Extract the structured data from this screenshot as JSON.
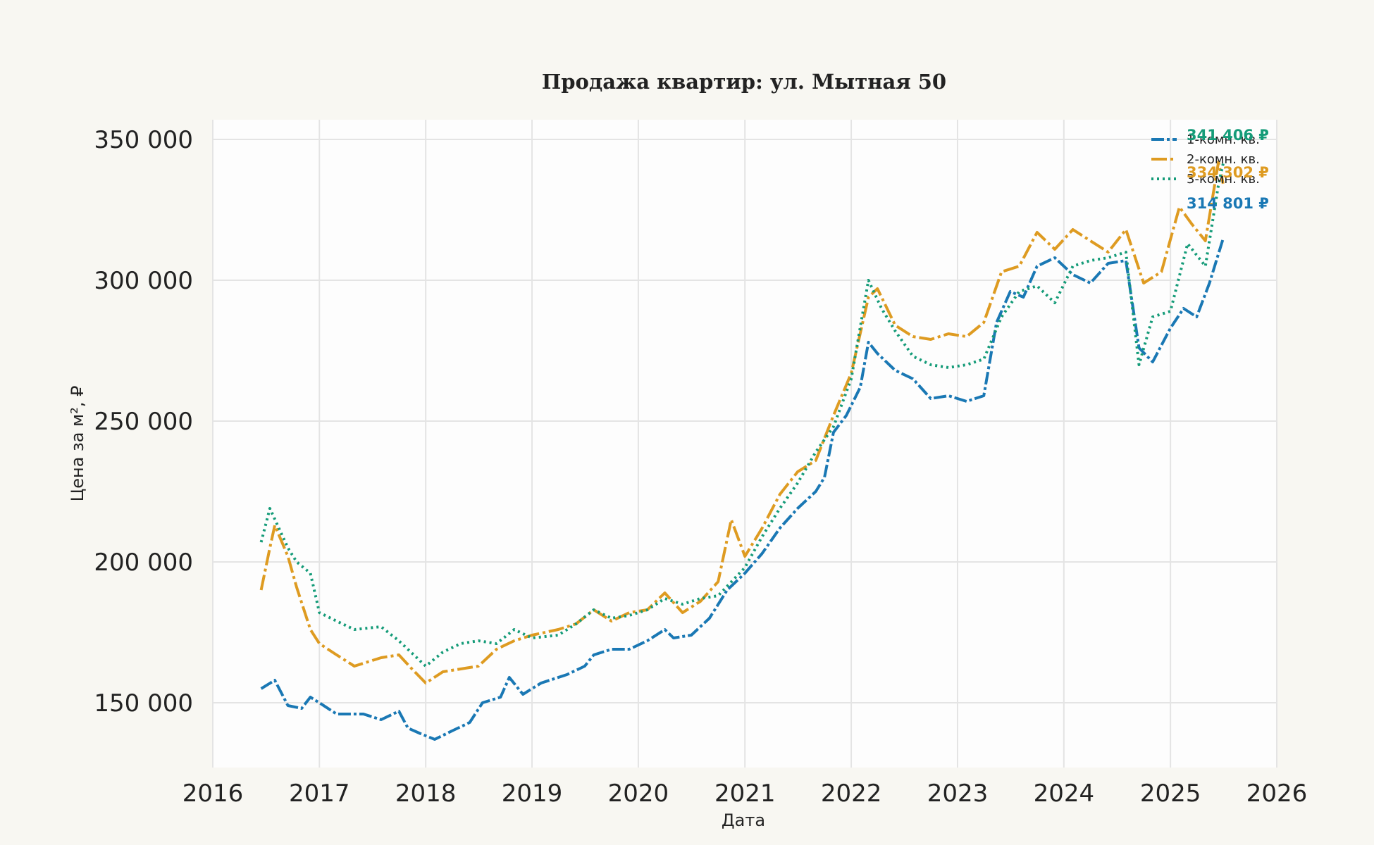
{
  "chart_data": {
    "type": "line",
    "title": "Продажа квартир: ул. Мытная 50",
    "xlabel": "Дата",
    "ylabel": "Цена за м², ₽",
    "x_ticks": [
      "2016",
      "2017",
      "2018",
      "2019",
      "2020",
      "2021",
      "2022",
      "2023",
      "2024",
      "2025",
      "2026"
    ],
    "y_ticks": [
      "150 000",
      "200 000",
      "250 000",
      "300 000",
      "350 000"
    ],
    "x_range": [
      "2016-01-01",
      "2026-01-01"
    ],
    "ylim": [
      127000,
      357000
    ],
    "grid": true,
    "legend_position": "top-right",
    "colors": {
      "background": "#f8f7f2",
      "plot": "#fdfdfd",
      "grid": "#e4e4e4"
    },
    "series": [
      {
        "name": "1-комн. кв.",
        "color": "#1a78b4",
        "dash": "18 4 4 4",
        "end_label": "314 801 ₽",
        "points": [
          [
            "2016-06-15",
            155000
          ],
          [
            "2016-08-01",
            158000
          ],
          [
            "2016-09-15",
            149000
          ],
          [
            "2016-11-01",
            148000
          ],
          [
            "2016-12-01",
            152000
          ],
          [
            "2017-01-01",
            150000
          ],
          [
            "2017-03-01",
            146000
          ],
          [
            "2017-06-01",
            146000
          ],
          [
            "2017-08-01",
            144000
          ],
          [
            "2017-10-01",
            147000
          ],
          [
            "2017-11-01",
            141000
          ],
          [
            "2017-12-15",
            139000
          ],
          [
            "2018-02-01",
            137000
          ],
          [
            "2018-04-01",
            140000
          ],
          [
            "2018-06-01",
            143000
          ],
          [
            "2018-07-15",
            150000
          ],
          [
            "2018-09-15",
            152000
          ],
          [
            "2018-10-15",
            159000
          ],
          [
            "2018-12-01",
            153000
          ],
          [
            "2019-02-01",
            157000
          ],
          [
            "2019-05-01",
            160000
          ],
          [
            "2019-07-01",
            163000
          ],
          [
            "2019-08-01",
            167000
          ],
          [
            "2019-10-01",
            169000
          ],
          [
            "2019-12-01",
            169000
          ],
          [
            "2020-02-01",
            172000
          ],
          [
            "2020-04-01",
            176000
          ],
          [
            "2020-05-01",
            173000
          ],
          [
            "2020-07-01",
            174000
          ],
          [
            "2020-09-01",
            180000
          ],
          [
            "2020-11-01",
            190000
          ],
          [
            "2021-01-01",
            196000
          ],
          [
            "2021-03-01",
            203000
          ],
          [
            "2021-05-01",
            212000
          ],
          [
            "2021-07-01",
            219000
          ],
          [
            "2021-09-01",
            225000
          ],
          [
            "2021-10-01",
            230000
          ],
          [
            "2021-11-01",
            246000
          ],
          [
            "2021-12-15",
            252000
          ],
          [
            "2022-02-01",
            262000
          ],
          [
            "2022-03-01",
            278000
          ],
          [
            "2022-04-01",
            274000
          ],
          [
            "2022-06-01",
            268000
          ],
          [
            "2022-08-01",
            265000
          ],
          [
            "2022-10-01",
            258000
          ],
          [
            "2022-12-01",
            259000
          ],
          [
            "2023-02-01",
            257000
          ],
          [
            "2023-04-01",
            259000
          ],
          [
            "2023-05-15",
            285000
          ],
          [
            "2023-07-01",
            296000
          ],
          [
            "2023-08-15",
            294000
          ],
          [
            "2023-10-01",
            305000
          ],
          [
            "2023-12-01",
            308000
          ],
          [
            "2024-02-01",
            302000
          ],
          [
            "2024-04-01",
            299000
          ],
          [
            "2024-06-01",
            306000
          ],
          [
            "2024-08-01",
            307000
          ],
          [
            "2024-09-15",
            276000
          ],
          [
            "2024-11-01",
            271000
          ],
          [
            "2025-01-01",
            283000
          ],
          [
            "2025-02-15",
            290000
          ],
          [
            "2025-04-01",
            287000
          ],
          [
            "2025-05-15",
            299000
          ],
          [
            "2025-07-01",
            314801
          ]
        ]
      },
      {
        "name": "2-комн. кв.",
        "color": "#de9b21",
        "dash": "22 5 4 5",
        "end_label": "334 302 ₽",
        "points": [
          [
            "2016-06-15",
            190000
          ],
          [
            "2016-07-15",
            205000
          ],
          [
            "2016-08-01",
            213000
          ],
          [
            "2016-09-15",
            202000
          ],
          [
            "2016-10-15",
            191000
          ],
          [
            "2016-12-01",
            176000
          ],
          [
            "2017-01-01",
            171000
          ],
          [
            "2017-03-01",
            167000
          ],
          [
            "2017-05-01",
            163000
          ],
          [
            "2017-08-01",
            166000
          ],
          [
            "2017-10-01",
            167000
          ],
          [
            "2017-11-15",
            162000
          ],
          [
            "2018-01-01",
            157000
          ],
          [
            "2018-03-01",
            161000
          ],
          [
            "2018-05-01",
            162000
          ],
          [
            "2018-07-01",
            163000
          ],
          [
            "2018-09-01",
            169000
          ],
          [
            "2018-11-01",
            172000
          ],
          [
            "2019-01-01",
            174000
          ],
          [
            "2019-04-01",
            176000
          ],
          [
            "2019-06-01",
            178000
          ],
          [
            "2019-08-01",
            183000
          ],
          [
            "2019-10-01",
            179000
          ],
          [
            "2019-12-01",
            182000
          ],
          [
            "2020-02-01",
            183000
          ],
          [
            "2020-04-01",
            189000
          ],
          [
            "2020-06-01",
            182000
          ],
          [
            "2020-08-01",
            186000
          ],
          [
            "2020-10-01",
            193000
          ],
          [
            "2020-11-15",
            215000
          ],
          [
            "2021-01-01",
            202000
          ],
          [
            "2021-03-01",
            212000
          ],
          [
            "2021-05-01",
            224000
          ],
          [
            "2021-07-01",
            232000
          ],
          [
            "2021-09-01",
            236000
          ],
          [
            "2021-11-01",
            252000
          ],
          [
            "2022-01-01",
            267000
          ],
          [
            "2022-03-01",
            294000
          ],
          [
            "2022-04-01",
            297000
          ],
          [
            "2022-06-01",
            284000
          ],
          [
            "2022-08-01",
            280000
          ],
          [
            "2022-10-01",
            279000
          ],
          [
            "2022-12-01",
            281000
          ],
          [
            "2023-02-01",
            280000
          ],
          [
            "2023-04-01",
            285000
          ],
          [
            "2023-06-01",
            303000
          ],
          [
            "2023-08-01",
            305000
          ],
          [
            "2023-10-01",
            317000
          ],
          [
            "2023-12-01",
            311000
          ],
          [
            "2024-02-01",
            318000
          ],
          [
            "2024-04-01",
            314000
          ],
          [
            "2024-06-01",
            310000
          ],
          [
            "2024-08-01",
            318000
          ],
          [
            "2024-10-01",
            299000
          ],
          [
            "2024-12-01",
            303000
          ],
          [
            "2025-02-01",
            326000
          ],
          [
            "2025-03-15",
            320000
          ],
          [
            "2025-05-01",
            314000
          ],
          [
            "2025-06-15",
            342000
          ],
          [
            "2025-07-01",
            334302
          ]
        ]
      },
      {
        "name": "3-комн. кв.",
        "color": "#149b78",
        "dash": "3 5",
        "end_label": "341 406 ₽",
        "points": [
          [
            "2016-06-15",
            207000
          ],
          [
            "2016-07-15",
            219000
          ],
          [
            "2016-08-15",
            212000
          ],
          [
            "2016-09-15",
            205000
          ],
          [
            "2016-10-15",
            200000
          ],
          [
            "2016-12-01",
            196000
          ],
          [
            "2017-01-01",
            182000
          ],
          [
            "2017-03-01",
            179000
          ],
          [
            "2017-05-01",
            176000
          ],
          [
            "2017-08-01",
            177000
          ],
          [
            "2017-10-01",
            172000
          ],
          [
            "2018-01-01",
            163000
          ],
          [
            "2018-03-01",
            168000
          ],
          [
            "2018-05-01",
            171000
          ],
          [
            "2018-07-01",
            172000
          ],
          [
            "2018-09-01",
            171000
          ],
          [
            "2018-11-01",
            176000
          ],
          [
            "2019-01-01",
            173000
          ],
          [
            "2019-04-01",
            174000
          ],
          [
            "2019-06-01",
            178000
          ],
          [
            "2019-08-01",
            183000
          ],
          [
            "2019-10-01",
            180000
          ],
          [
            "2019-12-01",
            181000
          ],
          [
            "2020-02-01",
            183000
          ],
          [
            "2020-04-01",
            187000
          ],
          [
            "2020-06-01",
            185000
          ],
          [
            "2020-08-01",
            187000
          ],
          [
            "2020-10-01",
            188000
          ],
          [
            "2021-01-01",
            198000
          ],
          [
            "2021-03-01",
            209000
          ],
          [
            "2021-05-01",
            219000
          ],
          [
            "2021-07-01",
            228000
          ],
          [
            "2021-09-01",
            239000
          ],
          [
            "2021-11-01",
            248000
          ],
          [
            "2022-01-01",
            265000
          ],
          [
            "2022-03-01",
            300000
          ],
          [
            "2022-04-15",
            290000
          ],
          [
            "2022-06-01",
            282000
          ],
          [
            "2022-08-01",
            273000
          ],
          [
            "2022-10-01",
            270000
          ],
          [
            "2022-12-01",
            269000
          ],
          [
            "2023-02-01",
            270000
          ],
          [
            "2023-04-01",
            272000
          ],
          [
            "2023-06-01",
            287000
          ],
          [
            "2023-08-01",
            296000
          ],
          [
            "2023-10-01",
            298000
          ],
          [
            "2023-12-01",
            292000
          ],
          [
            "2024-02-01",
            305000
          ],
          [
            "2024-04-01",
            307000
          ],
          [
            "2024-06-01",
            308000
          ],
          [
            "2024-08-01",
            310000
          ],
          [
            "2024-09-15",
            270000
          ],
          [
            "2024-11-01",
            287000
          ],
          [
            "2025-01-01",
            289000
          ],
          [
            "2025-03-01",
            313000
          ],
          [
            "2025-05-01",
            305000
          ],
          [
            "2025-06-15",
            334000
          ],
          [
            "2025-07-01",
            341406
          ]
        ]
      }
    ]
  }
}
